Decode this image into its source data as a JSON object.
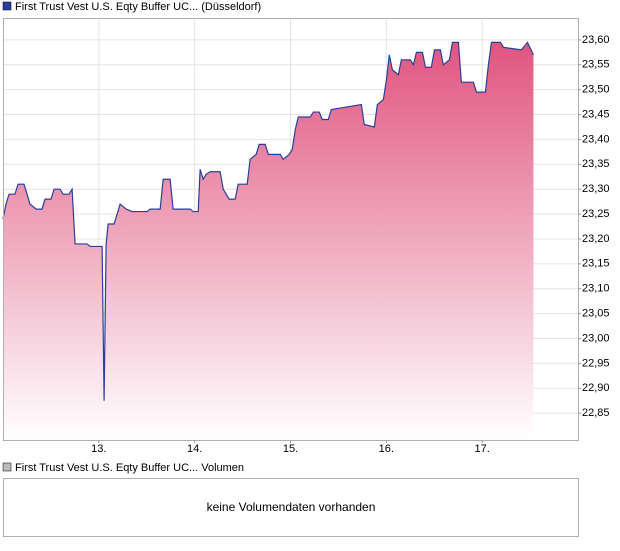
{
  "chart_data": {
    "type": "line",
    "series": [
      {
        "name": "First Trust Vest U.S. Eqty Buffer UC... (Düsseldorf)",
        "color": "#2b3f99",
        "fill_top": "#e05580",
        "x": [
          12.0,
          12.031,
          12.063,
          12.125,
          12.157,
          12.219,
          12.251,
          12.282,
          12.345,
          12.407,
          12.439,
          12.501,
          12.533,
          12.595,
          12.627,
          12.689,
          12.721,
          12.752,
          12.877,
          12.909,
          13.034,
          13.055,
          13.076,
          13.097,
          13.159,
          13.191,
          13.222,
          13.285,
          13.347,
          13.504,
          13.535,
          13.64,
          13.671,
          13.744,
          13.775,
          13.953,
          13.984,
          14.037,
          14.057,
          14.089,
          14.12,
          14.162,
          14.266,
          14.298,
          14.36,
          14.423,
          14.454,
          14.548,
          14.579,
          14.642,
          14.674,
          14.736,
          14.768,
          14.893,
          14.924,
          14.987,
          15.018,
          15.05,
          15.081,
          15.206,
          15.238,
          15.3,
          15.332,
          15.394,
          15.426,
          15.739,
          15.77,
          15.875,
          15.906,
          15.969,
          16.001,
          16.031,
          16.063,
          16.125,
          16.157,
          16.251,
          16.282,
          16.314,
          16.377,
          16.408,
          16.47,
          16.502,
          16.564,
          16.595,
          16.658,
          16.69,
          16.752,
          16.783,
          16.909,
          16.94,
          17.034,
          17.065,
          17.097,
          17.191,
          17.222,
          17.41,
          17.473,
          17.535
        ],
        "values": [
          23.24,
          23.27,
          23.29,
          23.29,
          23.31,
          23.31,
          23.29,
          23.27,
          23.26,
          23.26,
          23.28,
          23.28,
          23.3,
          23.3,
          23.29,
          23.29,
          23.3,
          23.19,
          23.19,
          23.185,
          23.185,
          22.875,
          23.19,
          23.23,
          23.23,
          23.25,
          23.27,
          23.26,
          23.255,
          23.255,
          23.26,
          23.26,
          23.32,
          23.32,
          23.26,
          23.26,
          23.255,
          23.255,
          23.34,
          23.32,
          23.33,
          23.335,
          23.335,
          23.3,
          23.28,
          23.28,
          23.31,
          23.31,
          23.36,
          23.37,
          23.39,
          23.39,
          23.37,
          23.37,
          23.36,
          23.37,
          23.38,
          23.42,
          23.445,
          23.445,
          23.455,
          23.455,
          23.44,
          23.44,
          23.46,
          23.47,
          23.43,
          23.425,
          23.47,
          23.48,
          23.52,
          23.57,
          23.54,
          23.53,
          23.56,
          23.56,
          23.55,
          23.575,
          23.575,
          23.545,
          23.545,
          23.58,
          23.58,
          23.55,
          23.56,
          23.595,
          23.595,
          23.515,
          23.515,
          23.495,
          23.495,
          23.55,
          23.595,
          23.595,
          23.585,
          23.58,
          23.595,
          23.57
        ]
      }
    ],
    "xlim": [
      12,
      18
    ],
    "xticks": [
      {
        "value": 13,
        "label": "13."
      },
      {
        "value": 14,
        "label": "14."
      },
      {
        "value": 15,
        "label": "15."
      },
      {
        "value": 16,
        "label": "16."
      },
      {
        "value": 17,
        "label": "17."
      }
    ],
    "ylim": [
      22.796,
      23.644
    ],
    "yticks": [
      {
        "value": 22.85,
        "label": "22,85"
      },
      {
        "value": 22.9,
        "label": "22,90"
      },
      {
        "value": 22.95,
        "label": "22,95"
      },
      {
        "value": 23.0,
        "label": "23,00"
      },
      {
        "value": 23.05,
        "label": "23,05"
      },
      {
        "value": 23.1,
        "label": "23,10"
      },
      {
        "value": 23.15,
        "label": "23,15"
      },
      {
        "value": 23.2,
        "label": "23,20"
      },
      {
        "value": 23.25,
        "label": "23,25"
      },
      {
        "value": 23.3,
        "label": "23,30"
      },
      {
        "value": 23.35,
        "label": "23,35"
      },
      {
        "value": 23.4,
        "label": "23,40"
      },
      {
        "value": 23.45,
        "label": "23,45"
      },
      {
        "value": 23.5,
        "label": "23,50"
      },
      {
        "value": 23.55,
        "label": "23,55"
      },
      {
        "value": 23.6,
        "label": "23,60"
      }
    ],
    "grid": true
  },
  "volume_panel": {
    "legend": "First Trust Vest U.S. Eqty Buffer UC... Volumen",
    "message": "keine Volumendaten vorhanden"
  }
}
